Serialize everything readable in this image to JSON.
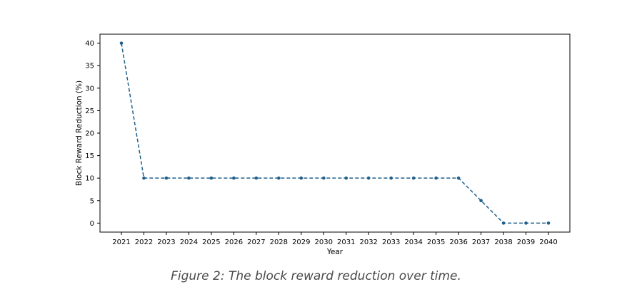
{
  "chart_data": {
    "type": "line",
    "x": [
      "2021",
      "2022",
      "2023",
      "2024",
      "2025",
      "2026",
      "2027",
      "2028",
      "2029",
      "2030",
      "2031",
      "2032",
      "2033",
      "2034",
      "2035",
      "2036",
      "2037",
      "2038",
      "2039",
      "2040"
    ],
    "series": [
      {
        "values": [
          40,
          10,
          10,
          10,
          10,
          10,
          10,
          10,
          10,
          10,
          10,
          10,
          10,
          10,
          10,
          10,
          5,
          0,
          0,
          0
        ],
        "color": "#1f5f8b",
        "line_style": "dashed",
        "marker": "dot"
      }
    ],
    "xlabel": "Year",
    "ylabel": "Block Reward Reduction (%)",
    "yticks": [
      0,
      5,
      10,
      15,
      20,
      25,
      30,
      35,
      40
    ],
    "ylim": [
      -2,
      42
    ],
    "grid": false,
    "legend": "none"
  },
  "caption": "Figure 2: The block reward reduction over time."
}
